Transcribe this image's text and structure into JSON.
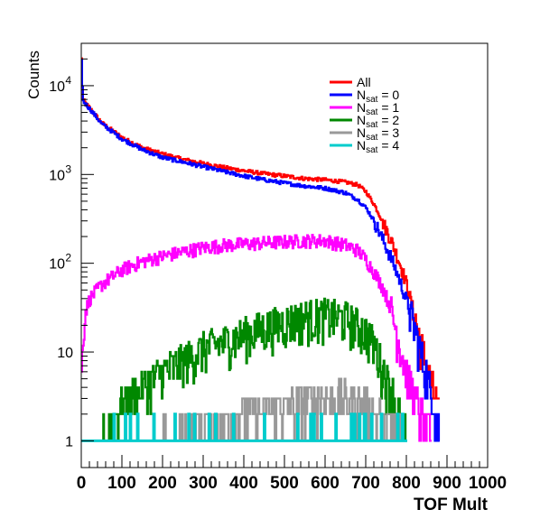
{
  "chart_data": {
    "type": "line",
    "title": "",
    "xlabel": "TOF Mult",
    "ylabel": "Counts",
    "xlim": [
      0,
      1000
    ],
    "ylim": [
      0.5,
      30000
    ],
    "yscale": "log",
    "grid": false,
    "legend_position": "top-right",
    "x_ticks": [
      "0",
      "100",
      "200",
      "300",
      "400",
      "500",
      "600",
      "700",
      "800",
      "900",
      "1000"
    ],
    "y_ticks": [
      {
        "value": 1,
        "base": "1",
        "exp": ""
      },
      {
        "value": 10,
        "base": "10",
        "exp": ""
      },
      {
        "value": 100,
        "base": "10",
        "exp": "2"
      },
      {
        "value": 1000,
        "base": "10",
        "exp": "3"
      },
      {
        "value": 10000,
        "base": "10",
        "exp": "4"
      }
    ],
    "series": [
      {
        "name": "All",
        "legend_main": "All",
        "legend_sub": "",
        "legend_tail": "",
        "color": "#ff0000",
        "points": [
          [
            0,
            20000
          ],
          [
            3,
            7000
          ],
          [
            10,
            6300
          ],
          [
            20,
            5600
          ],
          [
            50,
            3800
          ],
          [
            100,
            2600
          ],
          [
            150,
            2000
          ],
          [
            200,
            1700
          ],
          [
            250,
            1480
          ],
          [
            300,
            1330
          ],
          [
            350,
            1200
          ],
          [
            400,
            1100
          ],
          [
            450,
            1020
          ],
          [
            500,
            960
          ],
          [
            550,
            900
          ],
          [
            600,
            870
          ],
          [
            650,
            820
          ],
          [
            680,
            760
          ],
          [
            700,
            640
          ],
          [
            720,
            460
          ],
          [
            740,
            300
          ],
          [
            760,
            190
          ],
          [
            780,
            110
          ],
          [
            800,
            58
          ],
          [
            820,
            25
          ],
          [
            840,
            10
          ],
          [
            860,
            4.5
          ],
          [
            880,
            2
          ]
        ]
      },
      {
        "name": "N_sat = 0",
        "legend_main": "N",
        "legend_sub": "sat",
        "legend_tail": " = 0",
        "color": "#0000ff",
        "points": [
          [
            0,
            20000
          ],
          [
            3,
            6800
          ],
          [
            10,
            6200
          ],
          [
            20,
            5500
          ],
          [
            50,
            3700
          ],
          [
            100,
            2500
          ],
          [
            150,
            1900
          ],
          [
            200,
            1550
          ],
          [
            250,
            1380
          ],
          [
            300,
            1220
          ],
          [
            350,
            1080
          ],
          [
            400,
            960
          ],
          [
            450,
            870
          ],
          [
            500,
            800
          ],
          [
            550,
            740
          ],
          [
            600,
            700
          ],
          [
            650,
            620
          ],
          [
            680,
            520
          ],
          [
            700,
            420
          ],
          [
            720,
            300
          ],
          [
            740,
            190
          ],
          [
            760,
            120
          ],
          [
            780,
            70
          ],
          [
            800,
            38
          ],
          [
            820,
            18
          ],
          [
            840,
            8
          ],
          [
            860,
            3.5
          ],
          [
            880,
            1.5
          ]
        ]
      },
      {
        "name": "N_sat = 1",
        "legend_main": "N",
        "legend_sub": "sat",
        "legend_tail": " = 1",
        "color": "#ff00ff",
        "points": [
          [
            0,
            5
          ],
          [
            5,
            25
          ],
          [
            20,
            40
          ],
          [
            50,
            58
          ],
          [
            100,
            85
          ],
          [
            150,
            105
          ],
          [
            200,
            120
          ],
          [
            250,
            135
          ],
          [
            300,
            150
          ],
          [
            350,
            160
          ],
          [
            400,
            165
          ],
          [
            450,
            170
          ],
          [
            500,
            175
          ],
          [
            550,
            180
          ],
          [
            600,
            180
          ],
          [
            650,
            160
          ],
          [
            680,
            140
          ],
          [
            700,
            110
          ],
          [
            720,
            80
          ],
          [
            740,
            55
          ],
          [
            760,
            32
          ],
          [
            780,
            14
          ],
          [
            800,
            6
          ],
          [
            820,
            3
          ],
          [
            840,
            1.8
          ],
          [
            860,
            1
          ]
        ]
      },
      {
        "name": "N_sat = 2",
        "legend_main": "N",
        "legend_sub": "sat",
        "legend_tail": " = 2",
        "color": "#008800",
        "points": [
          [
            50,
            1
          ],
          [
            100,
            2.5
          ],
          [
            150,
            4
          ],
          [
            200,
            6
          ],
          [
            250,
            8
          ],
          [
            300,
            11
          ],
          [
            350,
            13
          ],
          [
            400,
            16
          ],
          [
            450,
            19
          ],
          [
            500,
            22
          ],
          [
            550,
            25
          ],
          [
            600,
            26
          ],
          [
            650,
            24
          ],
          [
            680,
            20
          ],
          [
            700,
            17
          ],
          [
            720,
            12
          ],
          [
            740,
            7
          ],
          [
            760,
            4
          ],
          [
            780,
            2
          ],
          [
            800,
            1
          ]
        ]
      },
      {
        "name": "N_sat = 3",
        "legend_main": "N",
        "legend_sub": "sat",
        "legend_tail": " = 3",
        "color": "#999999",
        "points": [
          [
            200,
            1
          ],
          [
            300,
            1.5
          ],
          [
            400,
            2
          ],
          [
            500,
            2.5
          ],
          [
            600,
            3
          ],
          [
            650,
            3
          ],
          [
            700,
            2.5
          ],
          [
            750,
            1.5
          ],
          [
            800,
            1
          ]
        ]
      },
      {
        "name": "N_sat = 4",
        "legend_main": "N",
        "legend_sub": "sat",
        "legend_tail": " = 4",
        "color": "#00cccc",
        "points": [
          [
            0,
            1
          ],
          [
            800,
            1
          ]
        ]
      }
    ]
  }
}
